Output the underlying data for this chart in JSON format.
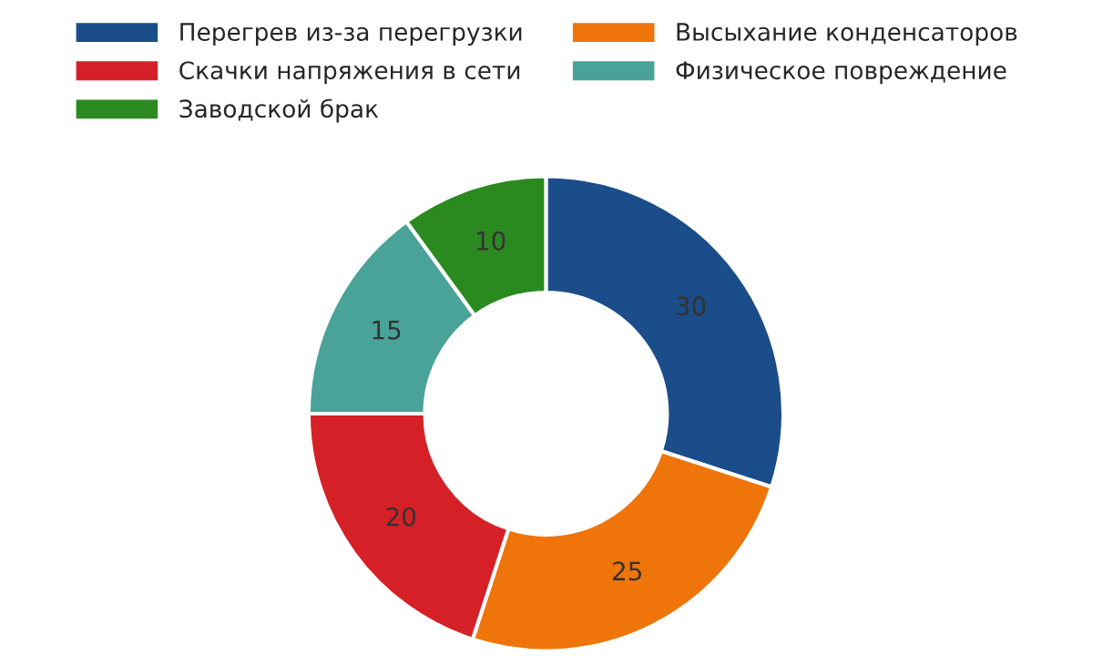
{
  "chart_data": {
    "type": "donut",
    "categories": [
      "Перегрев из-за перегрузки",
      "Высыхание конденсаторов",
      "Скачки напряжения в сети",
      "Физическое повреждение",
      "Заводской брак"
    ],
    "values": [
      30,
      25,
      20,
      15,
      10
    ],
    "colors": [
      "#1a4d8a",
      "#ef7409",
      "#d62027",
      "#4aa398",
      "#2b8a1f"
    ],
    "data_labels": true,
    "legend": "top"
  }
}
